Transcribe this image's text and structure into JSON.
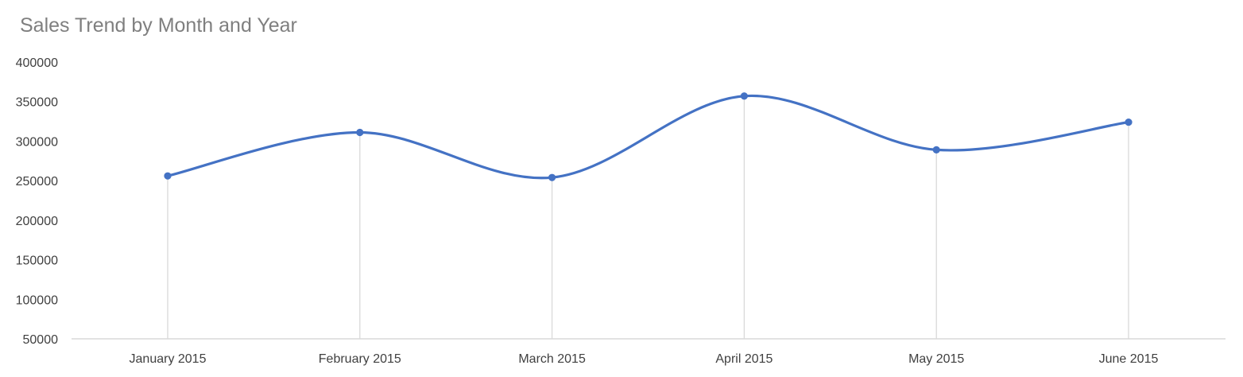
{
  "chart_data": {
    "type": "line",
    "title": "Sales Trend by Month and Year",
    "xlabel": "",
    "ylabel": "",
    "categories": [
      "January 2015",
      "February 2015",
      "March 2015",
      "April 2015",
      "May 2015",
      "June 2015"
    ],
    "series": [
      {
        "values": [
          256000,
          311000,
          254000,
          357000,
          289000,
          324000
        ]
      }
    ],
    "ylim": [
      50000,
      400000
    ],
    "yticks": [
      50000,
      100000,
      150000,
      200000,
      250000,
      300000,
      350000,
      400000
    ],
    "smooth": true,
    "markers": true,
    "drop_lines": true,
    "grid": false,
    "legend": "none",
    "colors": {
      "series": "#4472c4",
      "drop_line": "#d9d9d9",
      "axis": "#d9d9d9",
      "title": "#7f7f7f",
      "tick_label": "#404040"
    }
  }
}
